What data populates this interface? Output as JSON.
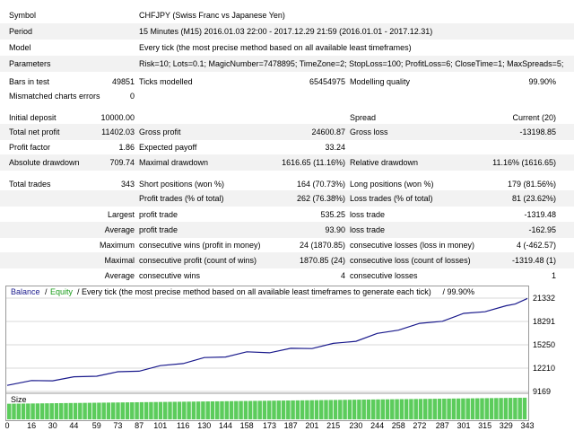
{
  "settings": {
    "symbol_label": "Symbol",
    "symbol_value": "CHFJPY (Swiss Franc vs Japanese Yen)",
    "period_label": "Period",
    "period_value": "15 Minutes (M15) 2016.01.03 22:00 - 2017.12.29 21:59 (2016.01.01 - 2017.12.31)",
    "model_label": "Model",
    "model_value": "Every tick (the most precise method based on all available least timeframes)",
    "parameters_label": "Parameters",
    "parameters_value": "Risk=10; Lots=0.1; MagicNumber=7478895; TimeZone=2; StopLoss=100; ProfitLoss=6; CloseTime=1; MaxSpreads=5;"
  },
  "stats": {
    "bars_label": "Bars in test",
    "bars_value": "49851",
    "ticks_label": "Ticks modelled",
    "ticks_value": "65454975",
    "quality_label": "Modelling quality",
    "quality_value": "99.90%",
    "mismatch_label": "Mismatched charts errors",
    "mismatch_value": "0",
    "deposit_label": "Initial deposit",
    "deposit_value": "10000.00",
    "spread_label": "Spread",
    "spread_value": "Current (20)",
    "net_label": "Total net profit",
    "net_value": "11402.03",
    "gross_profit_label": "Gross profit",
    "gross_profit_value": "24600.87",
    "gross_loss_label": "Gross loss",
    "gross_loss_value": "-13198.85",
    "pf_label": "Profit factor",
    "pf_value": "1.86",
    "ep_label": "Expected payoff",
    "ep_value": "33.24",
    "abs_dd_label": "Absolute drawdown",
    "abs_dd_value": "709.74",
    "max_dd_label": "Maximal drawdown",
    "max_dd_value": "1616.65 (11.16%)",
    "rel_dd_label": "Relative drawdown",
    "rel_dd_value": "11.16% (1616.65)",
    "trades_label": "Total trades",
    "trades_value": "343",
    "short_label": "Short positions (won %)",
    "short_value": "164 (70.73%)",
    "long_label": "Long positions (won %)",
    "long_value": "179 (81.56%)",
    "pt_label": "Profit trades (% of total)",
    "pt_value": "262 (76.38%)",
    "lt_label": "Loss trades (% of total)",
    "lt_value": "81 (23.62%)",
    "largest_label": "Largest",
    "lp_label": "profit trade",
    "lp_value": "535.25",
    "ll_label": "loss trade",
    "ll_value": "-1319.48",
    "average_label": "Average",
    "ap_label": "profit trade",
    "ap_value": "93.90",
    "al_label": "loss trade",
    "al_value": "-162.95",
    "maximum_label": "Maximum",
    "mcw_label": "consecutive wins (profit in money)",
    "mcw_value": "24 (1870.85)",
    "mcl_label": "consecutive losses (loss in money)",
    "mcl_value": "4 (-462.57)",
    "maximal_label": "Maximal",
    "mcp_label": "consecutive profit (count of wins)",
    "mcp_value": "1870.85 (24)",
    "mcll_label": "consecutive loss (count of losses)",
    "mcll_value": "-1319.48 (1)",
    "average2_label": "Average",
    "acw_label": "consecutive wins",
    "acw_value": "4",
    "acl_label": "consecutive losses",
    "acl_value": "1"
  },
  "chart": {
    "legend_balance": "Balance",
    "legend_sep1": "/",
    "legend_equity": "Equity",
    "legend_rest": "/ Every tick (the most precise method based on all available least timeframes to generate each tick)",
    "legend_quality": "/ 99.90%",
    "size_label": "Size",
    "colors": {
      "balance": "#1a1a8c",
      "equity": "#1a9c1a",
      "size_bar": "#5ccc5c",
      "grid": "#d8d8d8"
    },
    "y_ticks": [
      "21332",
      "18291",
      "15250",
      "12210",
      "9169"
    ],
    "x_ticks": [
      "0",
      "16",
      "30",
      "44",
      "59",
      "73",
      "87",
      "101",
      "116",
      "130",
      "144",
      "158",
      "173",
      "187",
      "201",
      "215",
      "230",
      "244",
      "258",
      "272",
      "287",
      "301",
      "315",
      "329",
      "343"
    ]
  },
  "chart_data": {
    "type": "line",
    "xlabel": "",
    "ylabel": "",
    "xlim": [
      0,
      343
    ],
    "ylim": [
      9169,
      21332
    ],
    "series": [
      {
        "name": "Balance",
        "x": [
          0,
          16,
          30,
          44,
          59,
          73,
          87,
          101,
          116,
          130,
          144,
          158,
          173,
          187,
          201,
          215,
          230,
          244,
          258,
          272,
          287,
          301,
          315,
          329,
          335,
          343
        ],
        "y": [
          10100,
          10450,
          10700,
          10950,
          11300,
          11600,
          11950,
          12400,
          12950,
          13450,
          13800,
          14200,
          14350,
          14650,
          14900,
          15300,
          15850,
          16600,
          17300,
          17900,
          18450,
          19200,
          19700,
          20200,
          20700,
          21150
        ]
      }
    ],
    "size_bars": {
      "value_start": 0.62,
      "value_end": 0.86,
      "count": 343
    }
  }
}
